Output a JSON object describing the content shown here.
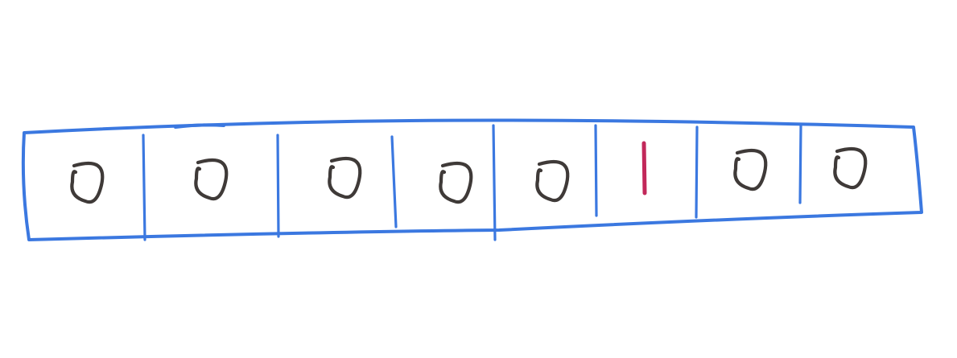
{
  "diagram": {
    "type": "bit-array",
    "cells": [
      "0",
      "0",
      "0",
      "0",
      "0",
      "1",
      "0",
      "0"
    ]
  },
  "colors": {
    "frame": "#3b78e0",
    "zero": "#3f3a38",
    "one": "#c2285a",
    "background": "#ffffff"
  }
}
